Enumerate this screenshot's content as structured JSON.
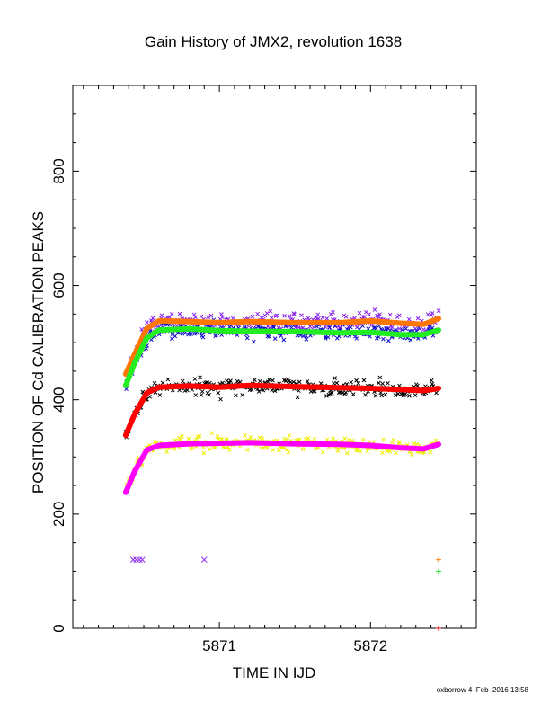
{
  "chart_data": {
    "type": "scatter",
    "title": "Gain History of JMX2, revolution 1638",
    "xlabel": "TIME IN IJD",
    "ylabel": "POSITION OF Cd CALIBRATION PEAKS",
    "footer": "oxborrow  4–Feb–2016 13:58",
    "xlim": [
      5870.03,
      5872.7
    ],
    "ylim": [
      0,
      950
    ],
    "x_ticks": [
      5871,
      5872
    ],
    "y_ticks": [
      0,
      200,
      400,
      600,
      800
    ],
    "x_tick_labels": [
      "5871",
      "5872"
    ],
    "y_tick_labels": [
      "0",
      "200",
      "400",
      "600",
      "800"
    ],
    "grid": false,
    "legend": "none",
    "x_range": [
      5870.38,
      5872.45
    ],
    "lines": [
      {
        "color": "#ff7700",
        "x": [
          5870.38,
          5870.44,
          5870.52,
          5870.6,
          5870.8,
          5871.0,
          5871.2,
          5871.5,
          5871.8,
          5872.0,
          5872.2,
          5872.35,
          5872.45
        ],
        "y": [
          445,
          480,
          525,
          538,
          537,
          535,
          537,
          535,
          535,
          538,
          534,
          532,
          542
        ]
      },
      {
        "color": "#22ee22",
        "x": [
          5870.38,
          5870.44,
          5870.52,
          5870.6,
          5870.8,
          5871.0,
          5871.2,
          5871.5,
          5871.8,
          5872.0,
          5872.2,
          5872.35,
          5872.45
        ],
        "y": [
          425,
          465,
          508,
          522,
          524,
          521,
          520,
          519,
          517,
          518,
          514,
          514,
          522
        ]
      },
      {
        "color": "#ff0000",
        "x": [
          5870.38,
          5870.44,
          5870.52,
          5870.6,
          5870.8,
          5871.0,
          5871.2,
          5871.5,
          5871.8,
          5872.0,
          5872.2,
          5872.35,
          5872.45
        ],
        "y": [
          338,
          375,
          412,
          422,
          424,
          422,
          425,
          423,
          421,
          420,
          418,
          416,
          420
        ]
      },
      {
        "color": "#ff00ff",
        "x": [
          5870.38,
          5870.44,
          5870.52,
          5870.6,
          5870.8,
          5871.0,
          5871.2,
          5871.5,
          5871.8,
          5872.0,
          5872.2,
          5872.35,
          5872.45
        ],
        "y": [
          238,
          275,
          312,
          320,
          323,
          324,
          325,
          323,
          322,
          320,
          316,
          314,
          322
        ]
      }
    ],
    "scatter": [
      {
        "color": "#8822ee",
        "center_line": 0,
        "spread": 14,
        "marker": "x"
      },
      {
        "color": "#1111cc",
        "center_line": 1,
        "spread": 12,
        "marker": "x"
      },
      {
        "color": "#000000",
        "center_line": 2,
        "spread": 14,
        "marker": "x"
      },
      {
        "color": "#eeee00",
        "center_line": 3,
        "spread": 12,
        "marker": "x"
      }
    ],
    "outliers": [
      {
        "color": "#8822ee",
        "marker": "x",
        "x": 5870.43,
        "y": 120
      },
      {
        "color": "#8822ee",
        "marker": "x",
        "x": 5870.45,
        "y": 120
      },
      {
        "color": "#8822ee",
        "marker": "x",
        "x": 5870.47,
        "y": 120
      },
      {
        "color": "#8822ee",
        "marker": "x",
        "x": 5870.49,
        "y": 120
      },
      {
        "color": "#8822ee",
        "marker": "x",
        "x": 5870.9,
        "y": 120
      },
      {
        "color": "#ff7700",
        "marker": "+",
        "x": 5872.45,
        "y": 120
      },
      {
        "color": "#22ee22",
        "marker": "+",
        "x": 5872.45,
        "y": 100
      },
      {
        "color": "#ff0000",
        "marker": "+",
        "x": 5872.45,
        "y": 0
      }
    ]
  }
}
